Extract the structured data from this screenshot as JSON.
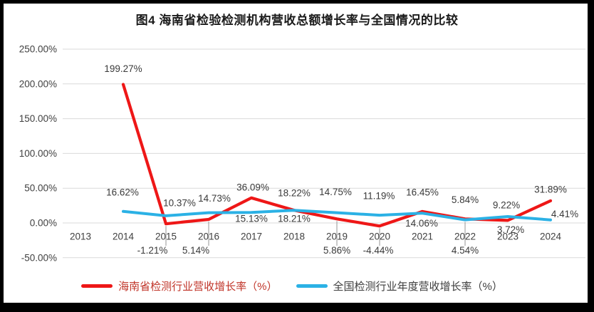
{
  "title": "图4 海南省检验检测机构营收总额增长率与全国情况的比较",
  "legend": {
    "items": [
      {
        "label": "海南省检测行业营收增长率（%）",
        "series_index": 0,
        "text_color": "#c03428"
      },
      {
        "label": "全国检测行业年度营收增长率（%）",
        "series_index": 1,
        "text_color": "#3d3d3d"
      }
    ]
  },
  "style": {
    "grid_color": "#d9d9d9",
    "leader_color": "#a6a6a6",
    "axis_text_color": "#404040",
    "data_label_color": "#3a3a3a",
    "background": "#ffffff",
    "border_color": "#000000"
  },
  "chart_data": {
    "type": "line",
    "title": "图4 海南省检验检测机构营收总额增长率与全国情况的比较",
    "categories": [
      "2013",
      "2014",
      "2015",
      "2016",
      "2017",
      "2018",
      "2019",
      "2020",
      "2021",
      "2022",
      "2023",
      "2024"
    ],
    "ylim": [
      -50,
      250
    ],
    "grid": true,
    "legend_position": "bottom",
    "y_axis_ticks": [
      {
        "value": 250,
        "label": "250.00%"
      },
      {
        "value": 200,
        "label": "200.00%"
      },
      {
        "value": 150,
        "label": "150.00%"
      },
      {
        "value": 100,
        "label": "100.00%"
      },
      {
        "value": 50,
        "label": "50.00%"
      },
      {
        "value": 0,
        "label": "0.00%"
      },
      {
        "value": -50,
        "label": "-50.00%"
      }
    ],
    "series": [
      {
        "name": "海南省检测行业营收增长率（%）",
        "color": "#ee1717",
        "stroke_width": 4.2,
        "points": [
          {
            "year": "2014",
            "value": 199.27,
            "label": "199.27%",
            "dx": 0,
            "dy": -22
          },
          {
            "year": "2015",
            "value": -1.21,
            "label": "-1.21%",
            "callout": true,
            "dx": -19
          },
          {
            "year": "2016",
            "value": 5.14,
            "label": "5.14%",
            "callout": true,
            "dx": -18
          },
          {
            "year": "2017",
            "value": 36.09,
            "label": "36.09%",
            "dx": 2,
            "dy": -15
          },
          {
            "year": "2018",
            "value": 18.22,
            "label": "18.22%",
            "dx": 0,
            "dy": -24
          },
          {
            "year": "2019",
            "value": 5.86,
            "label": "5.86%",
            "callout": true,
            "dx": 0
          },
          {
            "year": "2020",
            "value": -4.44,
            "label": "-4.44%",
            "callout": true,
            "dx": -2
          },
          {
            "year": "2021",
            "value": 16.45,
            "label": "16.45%",
            "dx": 0,
            "dy": -27
          },
          {
            "year": "2022",
            "value": 5.84,
            "label": "5.84%",
            "dx": 0,
            "dy": -27
          },
          {
            "year": "2023",
            "value": 3.72,
            "label": "3.72%",
            "dx": 4,
            "dy": 13
          },
          {
            "year": "2024",
            "value": 31.89,
            "label": "31.89%",
            "dx": 0,
            "dy": -16
          }
        ]
      },
      {
        "name": "全国检测行业年度营收增长率（%）",
        "color": "#2bb1e5",
        "stroke_width": 4,
        "points": [
          {
            "year": "2014",
            "value": 16.62,
            "label": "16.62%",
            "dx": -1,
            "dy": -27
          },
          {
            "year": "2015",
            "value": 10.37,
            "label": "10.37%",
            "dx": 19,
            "dy": -18
          },
          {
            "year": "2016",
            "value": 14.73,
            "label": "14.73%",
            "dx": 8,
            "dy": -20
          },
          {
            "year": "2017",
            "value": 15.13,
            "label": "15.13%",
            "dx": 0,
            "dy": 9
          },
          {
            "year": "2018",
            "value": 18.21,
            "label": "18.21%",
            "dx": 0,
            "dy": 12
          },
          {
            "year": "2019",
            "value": 14.75,
            "label": "14.75%",
            "dx": -2,
            "dy": -29
          },
          {
            "year": "2020",
            "value": 11.19,
            "label": "11.19%",
            "dx": -1,
            "dy": -27
          },
          {
            "year": "2021",
            "value": 14.06,
            "label": "14.06%",
            "dx": -1,
            "dy": 14
          },
          {
            "year": "2022",
            "value": 4.54,
            "label": "4.54%",
            "callout": true,
            "dx": 0
          },
          {
            "year": "2023",
            "value": 9.22,
            "label": "9.22%",
            "dx": -2,
            "dy": -16
          },
          {
            "year": "2024",
            "value": 4.41,
            "label": "4.41%",
            "dx": 20,
            "dy": -8
          }
        ]
      }
    ]
  }
}
